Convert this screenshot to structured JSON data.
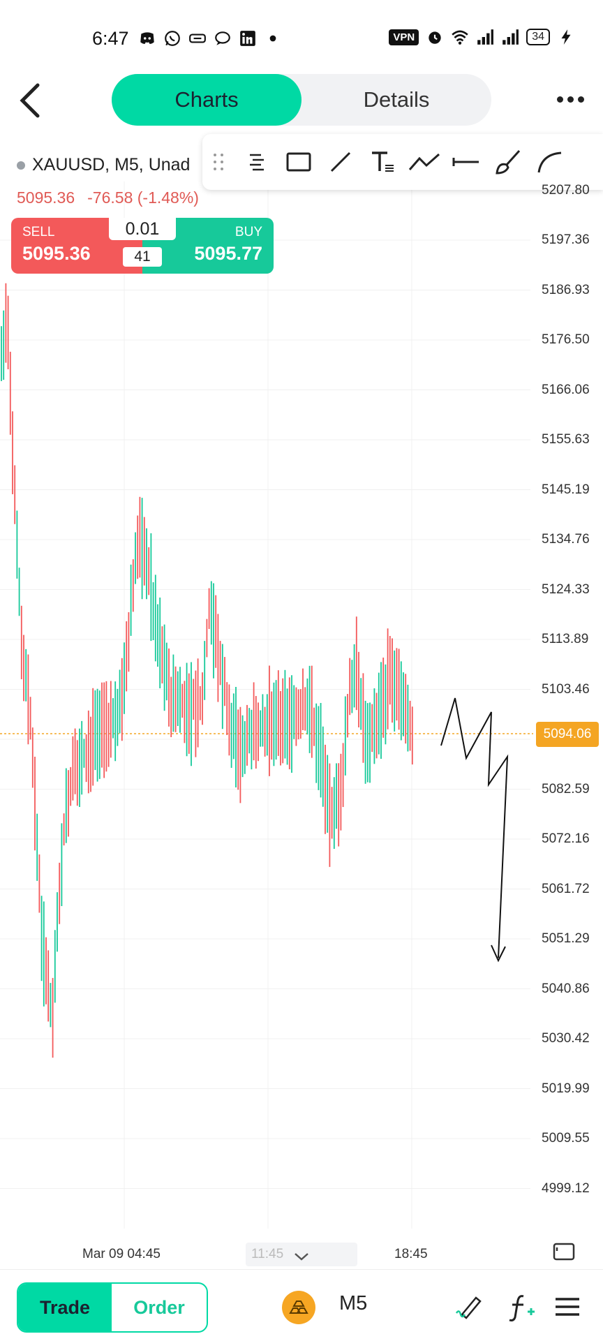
{
  "status_bar": {
    "time": "6:47",
    "vpn": "VPN",
    "battery": "34",
    "left_icons": [
      "discord-icon",
      "whatsapp-icon",
      "rewards-icon",
      "chat-icon",
      "linkedin-icon",
      "dot-icon"
    ],
    "right_icons": [
      "alarm-icon",
      "wifi-icon",
      "signal-icon",
      "signal-icon",
      "charging-icon"
    ]
  },
  "header": {
    "tabs": [
      {
        "label": "Charts",
        "active": true
      },
      {
        "label": "Details",
        "active": false
      }
    ]
  },
  "chart": {
    "symbol": "XAUUSD, M5, Unad",
    "last_price": "5095.36",
    "change": "-76.58 (-1.48%)",
    "sell_label": "SELL",
    "sell_price": "5095.36",
    "buy_label": "BUY",
    "buy_price": "5095.77",
    "lot": "0.01",
    "spread": "41",
    "current_price_tag": "5094.06",
    "partial_top_label": "5207.80",
    "y_labels": [
      "5197.36",
      "5186.93",
      "5176.50",
      "5166.06",
      "5155.63",
      "5145.19",
      "5134.76",
      "5124.33",
      "5113.89",
      "5103.46",
      "5082.59",
      "5072.16",
      "5061.72",
      "5051.29",
      "5040.86",
      "5030.42",
      "5019.99",
      "5009.55",
      "4999.12"
    ],
    "x_labels": {
      "left": "Mar 09 04:45",
      "right": "18:45"
    },
    "crosshair_time": "11:45",
    "colors": {
      "up": "#17c99a",
      "down": "#f3595a",
      "accent": "#00d9a4",
      "price_tag": "#f4a523"
    }
  },
  "draw_tools": [
    "drag-handle-icon",
    "fib-icon",
    "rectangle-icon",
    "line-icon",
    "text-icon",
    "polyline-icon",
    "horizontal-line-icon",
    "brush-icon",
    "arc-icon"
  ],
  "bottom_bar": {
    "trade_label": "Trade",
    "order_label": "Order",
    "timeframe": "M5"
  }
}
